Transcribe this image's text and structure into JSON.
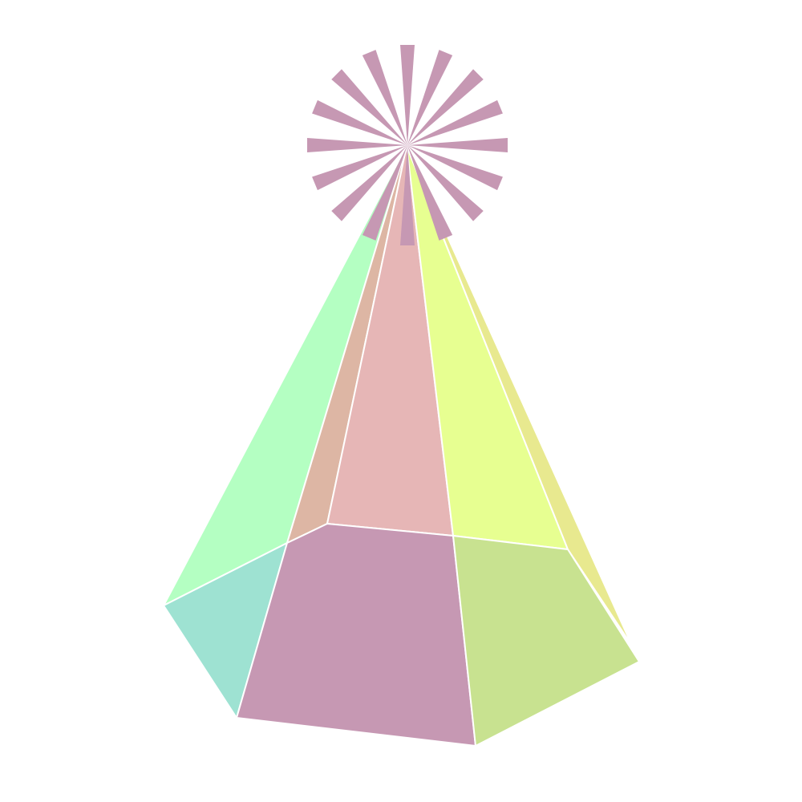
{
  "figure": {
    "subject": "party-hat",
    "shape": "hexagonal pyramid",
    "background_color": "#ffffff",
    "edge_color": "#ffffff",
    "colors": {
      "side_left_back": "#b4ffc2",
      "side_back": "#e6b6b6",
      "side_back_left_shadow": "#ddb6a4",
      "side_right_back": "#e7ff91",
      "side_right_outer": "#e8e98f",
      "base_left": "#9ee2d2",
      "base_front": "#c698b3",
      "base_right": "#c8e290",
      "starburst": "#c698b3"
    },
    "starburst_rays": 16
  }
}
